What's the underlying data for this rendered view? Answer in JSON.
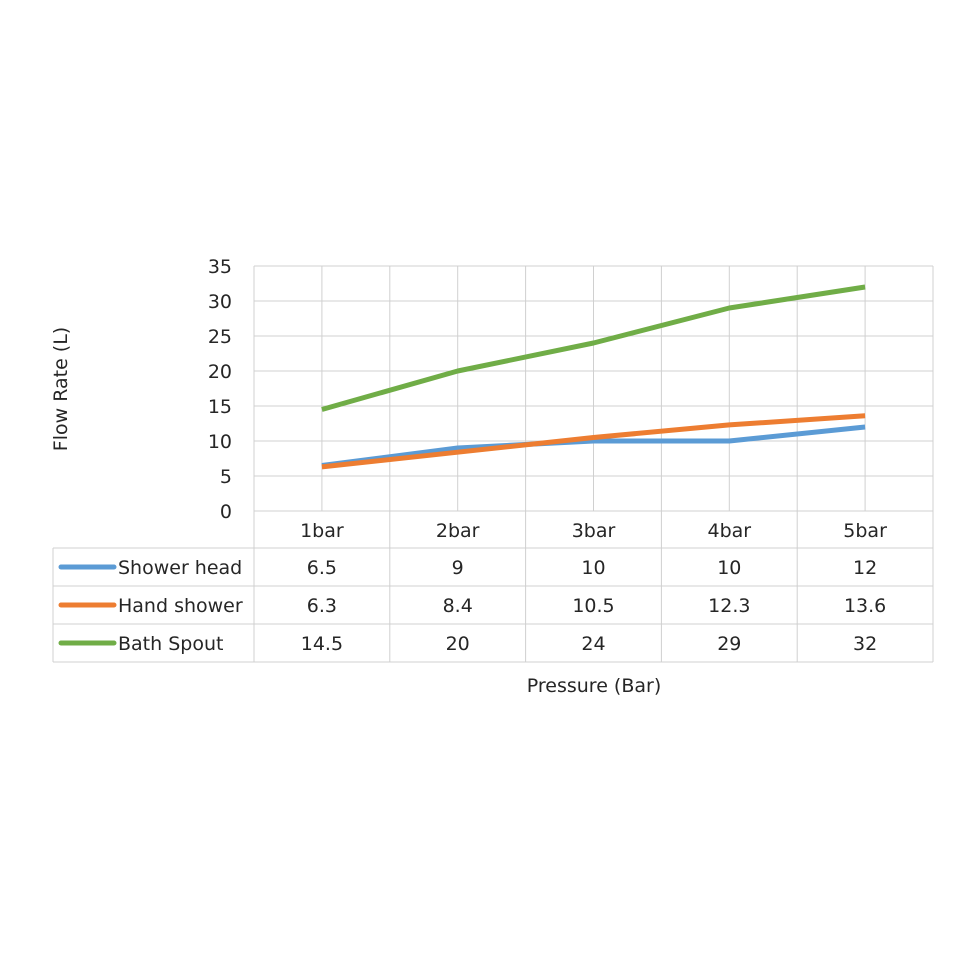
{
  "chart_data": {
    "type": "line",
    "title": "",
    "xlabel": "Pressure (Bar)",
    "ylabel": "Flow Rate (L)",
    "categories": [
      "1bar",
      "2bar",
      "3bar",
      "4bar",
      "5bar"
    ],
    "ylim": [
      0,
      35
    ],
    "yticks": [
      0,
      5,
      10,
      15,
      20,
      25,
      30,
      35
    ],
    "grid": true,
    "legend": "data-table",
    "series": [
      {
        "name": "Shower head",
        "values": [
          6.5,
          9,
          10,
          10,
          12
        ],
        "color": "#5B9BD5"
      },
      {
        "name": "Hand shower",
        "values": [
          6.3,
          8.4,
          10.5,
          12.3,
          13.6
        ],
        "color": "#ED7D31"
      },
      {
        "name": "Bath Spout",
        "values": [
          14.5,
          20,
          24,
          29,
          32
        ],
        "color": "#70AD47"
      }
    ]
  }
}
